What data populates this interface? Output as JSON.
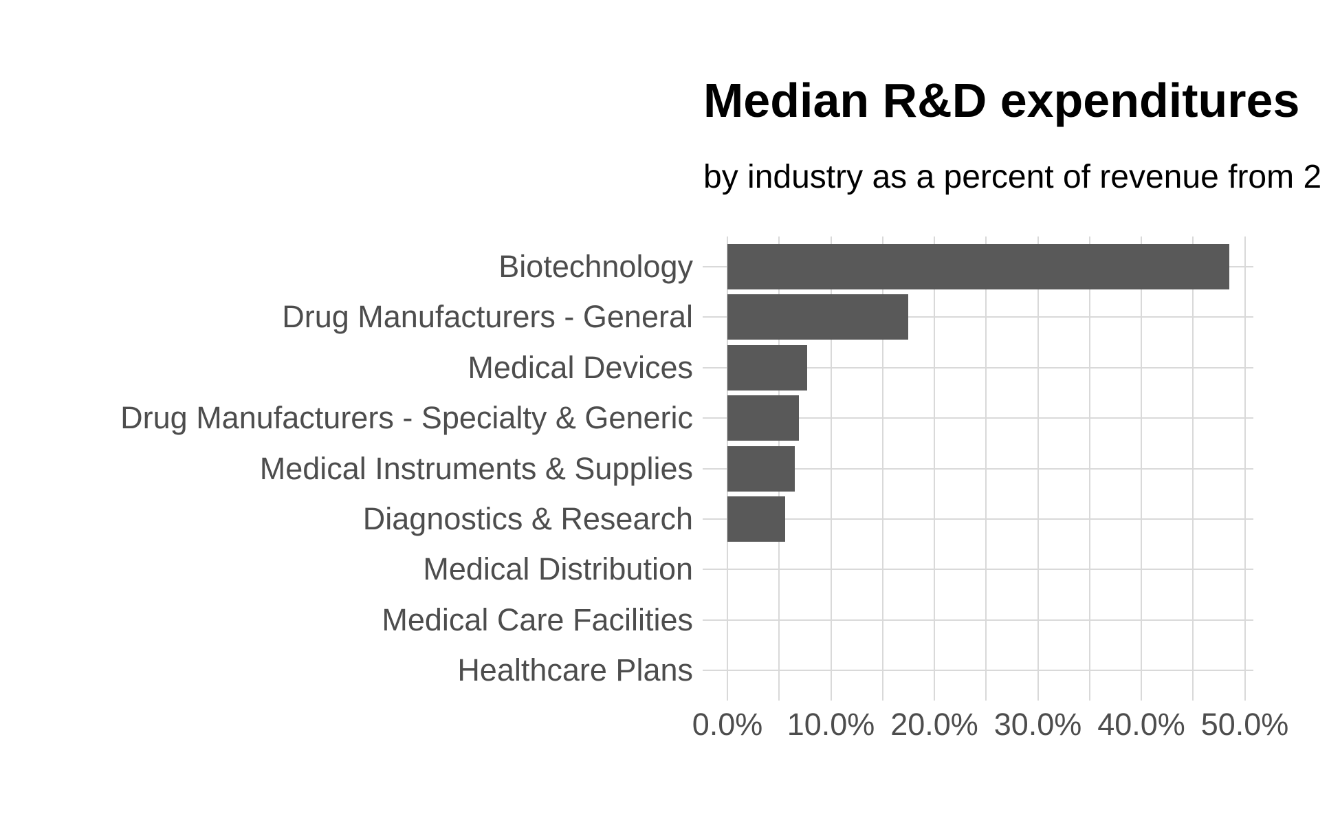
{
  "header": {
    "title": "Median R&D expenditures",
    "subtitle": "by industry as a percent of revenue from 2"
  },
  "chart_data": {
    "type": "bar",
    "orientation": "horizontal",
    "title": "Median R&D expenditures",
    "subtitle": "by industry as a percent of revenue from 2",
    "categories": [
      "Biotechnology",
      "Drug Manufacturers - General",
      "Medical Devices",
      "Drug Manufacturers - Specialty & Generic",
      "Medical Instruments & Supplies",
      "Diagnostics & Research",
      "Medical Distribution",
      "Medical Care Facilities",
      "Healthcare Plans"
    ],
    "values": [
      48.5,
      17.5,
      7.7,
      6.9,
      6.5,
      5.6,
      0,
      0,
      0
    ],
    "value_unit": "percent",
    "xlim": [
      0,
      50
    ],
    "x_major_ticks": [
      0,
      10,
      20,
      30,
      40,
      50
    ],
    "x_tick_labels": [
      "0.0%",
      "10.0%",
      "20.0%",
      "30.0%",
      "40.0%",
      "50.0%"
    ],
    "x_minor_step": 5,
    "grid": true,
    "legend": "none",
    "colors": {
      "bar_fill": "#595959",
      "gridline": "#d9d9d9",
      "axis_text": "#4d4d4d",
      "title_text": "#000000",
      "background": "#ffffff"
    }
  }
}
